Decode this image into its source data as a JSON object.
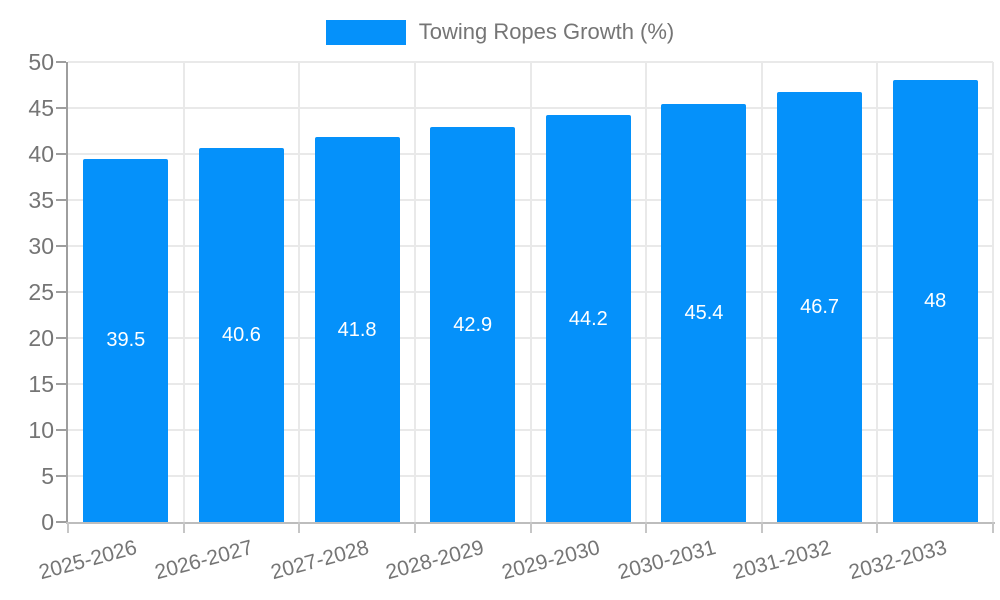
{
  "legend": {
    "label": "Towing Ropes Growth (%)"
  },
  "chart_data": {
    "type": "bar",
    "title": "",
    "categories": [
      "2025-2026",
      "2026-2027",
      "2027-2028",
      "2028-2029",
      "2029-2030",
      "2030-2031",
      "2031-2032",
      "2032-2033"
    ],
    "series": [
      {
        "name": "Towing Ropes Growth (%)",
        "values": [
          39.5,
          40.6,
          41.8,
          42.9,
          44.2,
          45.4,
          46.7,
          48
        ]
      }
    ],
    "value_labels": [
      "39.5",
      "40.6",
      "41.8",
      "42.9",
      "44.2",
      "45.4",
      "46.7",
      "48"
    ],
    "xlabel": "",
    "ylabel": "",
    "ylim": [
      0,
      50
    ],
    "ytick_step": 5,
    "ytick_labels": [
      "0",
      "5",
      "10",
      "15",
      "20",
      "25",
      "30",
      "35",
      "40",
      "45",
      "50"
    ],
    "grid": true,
    "legend_position": "top",
    "bar_color": "#0591FA",
    "colors": {
      "axis_text": "#757575",
      "bar_label": "#FFFFFF",
      "gridline": "#E9E9E9",
      "y_axis_line": "#9E9E9E",
      "x_axis_line": "#BDBDBD"
    }
  }
}
